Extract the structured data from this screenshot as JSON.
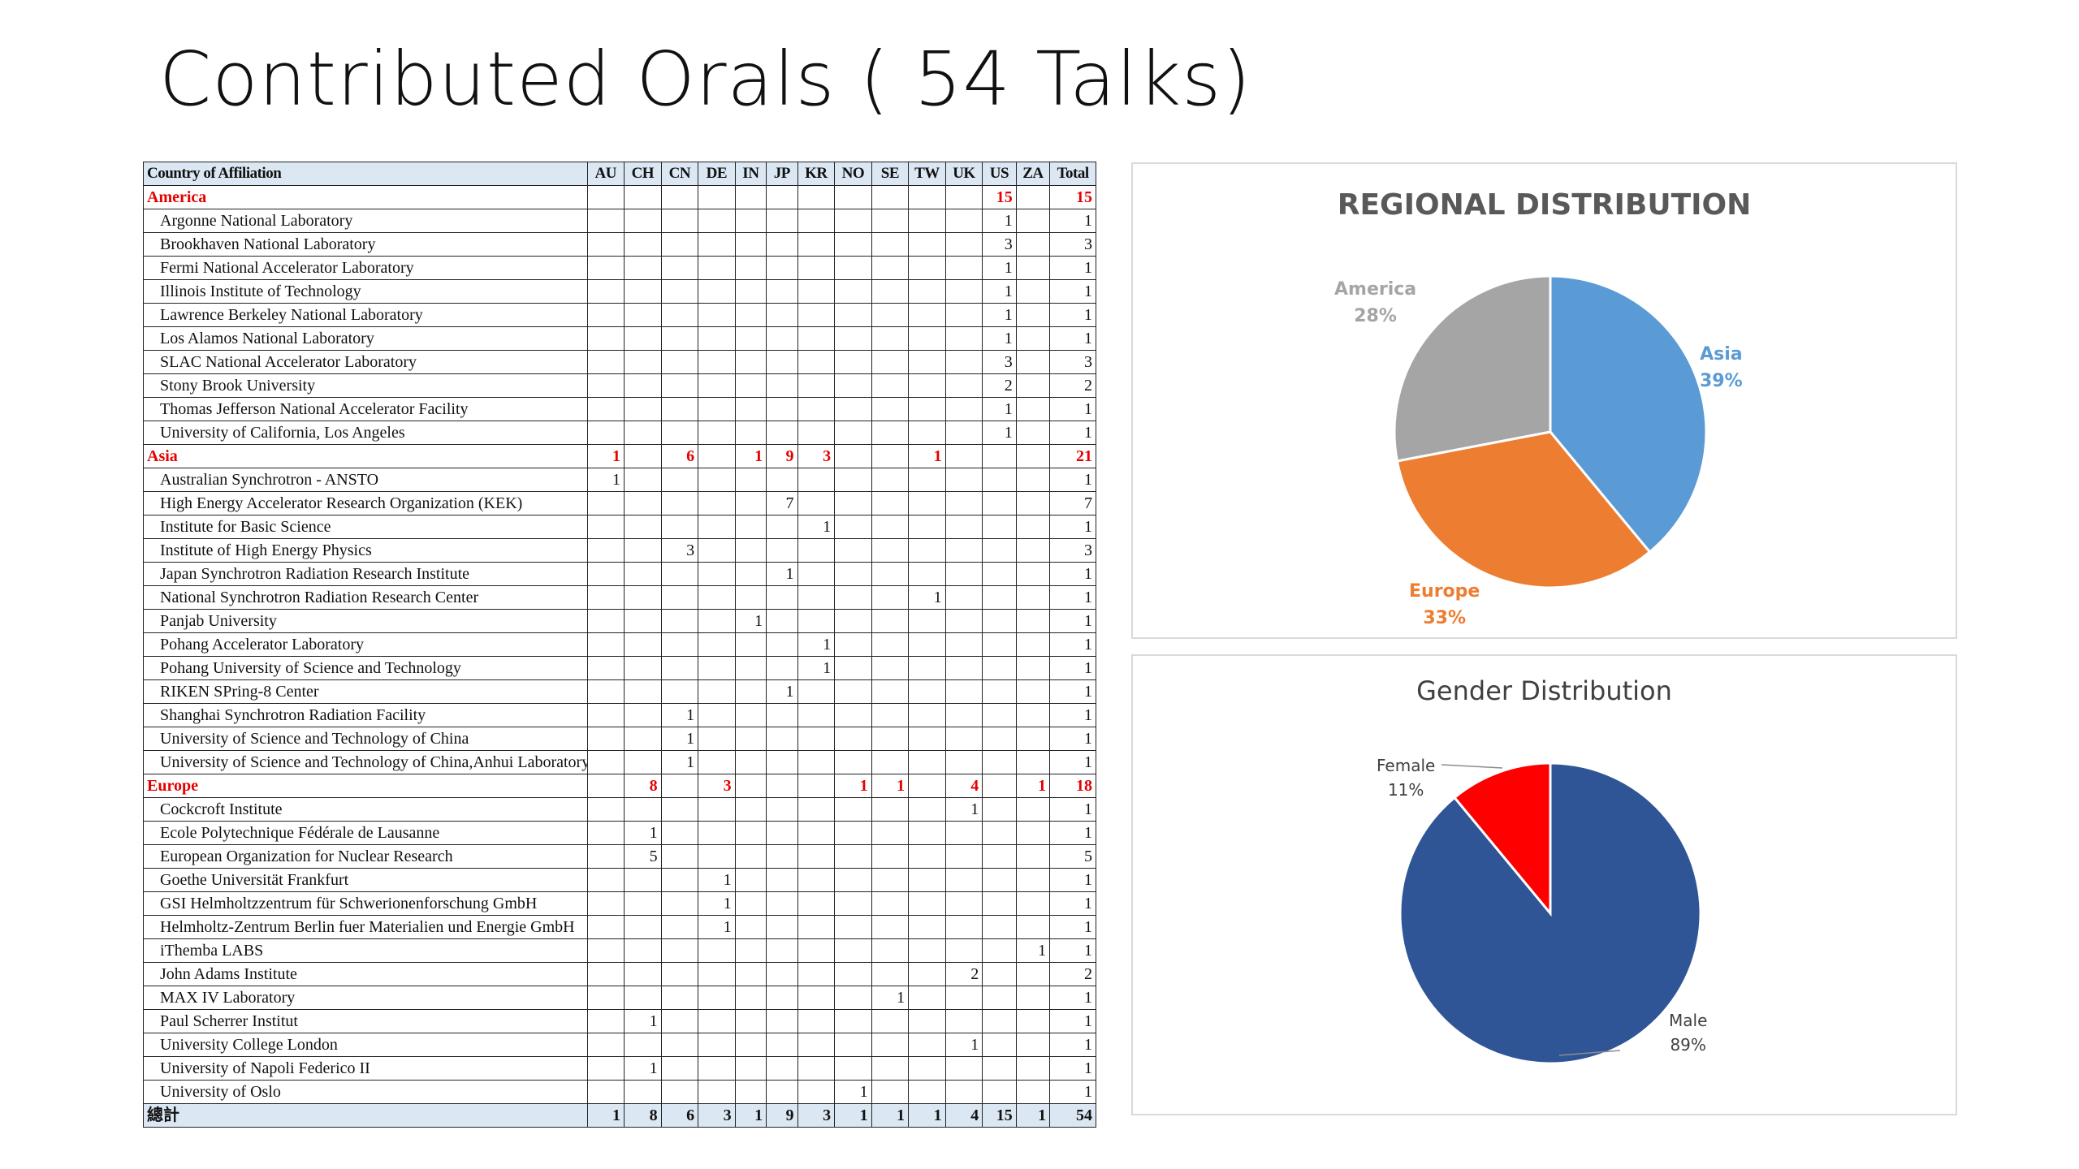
{
  "slide": {
    "title": "Contributed Orals ( 54 Talks)"
  },
  "table": {
    "header": [
      "Country of Affiliation",
      "AU",
      "CH",
      "CN",
      "DE",
      "IN",
      "JP",
      "KR",
      "NO",
      "SE",
      "TW",
      "UK",
      "US",
      "ZA",
      "Total"
    ],
    "rows": [
      {
        "kind": "region",
        "cells": [
          "America",
          "",
          "",
          "",
          "",
          "",
          "",
          "",
          "",
          "",
          "",
          "",
          "15",
          "",
          "15"
        ]
      },
      {
        "kind": "inst",
        "cells": [
          "Argonne National Laboratory",
          "",
          "",
          "",
          "",
          "",
          "",
          "",
          "",
          "",
          "",
          "",
          "1",
          "",
          "1"
        ]
      },
      {
        "kind": "inst",
        "cells": [
          "Brookhaven National Laboratory",
          "",
          "",
          "",
          "",
          "",
          "",
          "",
          "",
          "",
          "",
          "",
          "3",
          "",
          "3"
        ]
      },
      {
        "kind": "inst",
        "cells": [
          "Fermi National Accelerator Laboratory",
          "",
          "",
          "",
          "",
          "",
          "",
          "",
          "",
          "",
          "",
          "",
          "1",
          "",
          "1"
        ]
      },
      {
        "kind": "inst",
        "cells": [
          "Illinois Institute of Technology",
          "",
          "",
          "",
          "",
          "",
          "",
          "",
          "",
          "",
          "",
          "",
          "1",
          "",
          "1"
        ]
      },
      {
        "kind": "inst",
        "cells": [
          "Lawrence Berkeley National Laboratory",
          "",
          "",
          "",
          "",
          "",
          "",
          "",
          "",
          "",
          "",
          "",
          "1",
          "",
          "1"
        ]
      },
      {
        "kind": "inst",
        "cells": [
          "Los Alamos National Laboratory",
          "",
          "",
          "",
          "",
          "",
          "",
          "",
          "",
          "",
          "",
          "",
          "1",
          "",
          "1"
        ]
      },
      {
        "kind": "inst",
        "cells": [
          "SLAC National Accelerator Laboratory",
          "",
          "",
          "",
          "",
          "",
          "",
          "",
          "",
          "",
          "",
          "",
          "3",
          "",
          "3"
        ]
      },
      {
        "kind": "inst",
        "cells": [
          "Stony Brook University",
          "",
          "",
          "",
          "",
          "",
          "",
          "",
          "",
          "",
          "",
          "",
          "2",
          "",
          "2"
        ]
      },
      {
        "kind": "inst",
        "cells": [
          "Thomas Jefferson National Accelerator Facility",
          "",
          "",
          "",
          "",
          "",
          "",
          "",
          "",
          "",
          "",
          "",
          "1",
          "",
          "1"
        ]
      },
      {
        "kind": "inst",
        "cells": [
          "University of California, Los Angeles",
          "",
          "",
          "",
          "",
          "",
          "",
          "",
          "",
          "",
          "",
          "",
          "1",
          "",
          "1"
        ]
      },
      {
        "kind": "region",
        "cells": [
          "Asia",
          "1",
          "",
          "6",
          "",
          "1",
          "9",
          "3",
          "",
          "",
          "1",
          "",
          "",
          "",
          "21"
        ]
      },
      {
        "kind": "inst",
        "cells": [
          "Australian Synchrotron - ANSTO",
          "1",
          "",
          "",
          "",
          "",
          "",
          "",
          "",
          "",
          "",
          "",
          "",
          "",
          "1"
        ]
      },
      {
        "kind": "inst",
        "cells": [
          "High Energy Accelerator Research Organization (KEK)",
          "",
          "",
          "",
          "",
          "",
          "7",
          "",
          "",
          "",
          "",
          "",
          "",
          "",
          "7"
        ]
      },
      {
        "kind": "inst",
        "cells": [
          "Institute for Basic Science",
          "",
          "",
          "",
          "",
          "",
          "",
          "1",
          "",
          "",
          "",
          "",
          "",
          "",
          "1"
        ]
      },
      {
        "kind": "inst",
        "cells": [
          "Institute of High Energy Physics",
          "",
          "",
          "3",
          "",
          "",
          "",
          "",
          "",
          "",
          "",
          "",
          "",
          "",
          "3"
        ]
      },
      {
        "kind": "inst",
        "cells": [
          "Japan Synchrotron Radiation Research Institute",
          "",
          "",
          "",
          "",
          "",
          "1",
          "",
          "",
          "",
          "",
          "",
          "",
          "",
          "1"
        ]
      },
      {
        "kind": "inst",
        "cells": [
          "National Synchrotron Radiation Research Center",
          "",
          "",
          "",
          "",
          "",
          "",
          "",
          "",
          "",
          "1",
          "",
          "",
          "",
          "1"
        ]
      },
      {
        "kind": "inst",
        "cells": [
          "Panjab University",
          "",
          "",
          "",
          "",
          "1",
          "",
          "",
          "",
          "",
          "",
          "",
          "",
          "",
          "1"
        ]
      },
      {
        "kind": "inst",
        "cells": [
          "Pohang Accelerator Laboratory",
          "",
          "",
          "",
          "",
          "",
          "",
          "1",
          "",
          "",
          "",
          "",
          "",
          "",
          "1"
        ]
      },
      {
        "kind": "inst",
        "cells": [
          "Pohang University of Science and Technology",
          "",
          "",
          "",
          "",
          "",
          "",
          "1",
          "",
          "",
          "",
          "",
          "",
          "",
          "1"
        ]
      },
      {
        "kind": "inst",
        "cells": [
          "RIKEN SPring-8 Center",
          "",
          "",
          "",
          "",
          "",
          "1",
          "",
          "",
          "",
          "",
          "",
          "",
          "",
          "1"
        ]
      },
      {
        "kind": "inst",
        "cells": [
          "Shanghai Synchrotron Radiation Facility",
          "",
          "",
          "1",
          "",
          "",
          "",
          "",
          "",
          "",
          "",
          "",
          "",
          "",
          "1"
        ]
      },
      {
        "kind": "inst",
        "cells": [
          "University of Science and Technology of China",
          "",
          "",
          "1",
          "",
          "",
          "",
          "",
          "",
          "",
          "",
          "",
          "",
          "",
          "1"
        ]
      },
      {
        "kind": "inst",
        "cells": [
          "University of Science and Technology of China,Anhui Laboratory of A",
          "",
          "",
          "1",
          "",
          "",
          "",
          "",
          "",
          "",
          "",
          "",
          "",
          "",
          "1"
        ]
      },
      {
        "kind": "region",
        "cells": [
          "Europe",
          "",
          "8",
          "",
          "3",
          "",
          "",
          "",
          "1",
          "1",
          "",
          "4",
          "",
          "1",
          "18"
        ]
      },
      {
        "kind": "inst",
        "cells": [
          "Cockcroft Institute",
          "",
          "",
          "",
          "",
          "",
          "",
          "",
          "",
          "",
          "",
          "1",
          "",
          "",
          "1"
        ]
      },
      {
        "kind": "inst",
        "cells": [
          "Ecole Polytechnique Fédérale de Lausanne",
          "",
          "1",
          "",
          "",
          "",
          "",
          "",
          "",
          "",
          "",
          "",
          "",
          "",
          "1"
        ]
      },
      {
        "kind": "inst",
        "cells": [
          "European Organization for Nuclear Research",
          "",
          "5",
          "",
          "",
          "",
          "",
          "",
          "",
          "",
          "",
          "",
          "",
          "",
          "5"
        ]
      },
      {
        "kind": "inst",
        "cells": [
          "Goethe Universität Frankfurt",
          "",
          "",
          "",
          "1",
          "",
          "",
          "",
          "",
          "",
          "",
          "",
          "",
          "",
          "1"
        ]
      },
      {
        "kind": "inst",
        "cells": [
          "GSI Helmholtzzentrum für Schwerionenforschung GmbH",
          "",
          "",
          "",
          "1",
          "",
          "",
          "",
          "",
          "",
          "",
          "",
          "",
          "",
          "1"
        ]
      },
      {
        "kind": "inst",
        "cells": [
          "Helmholtz-Zentrum Berlin fuer Materialien und Energie GmbH",
          "",
          "",
          "",
          "1",
          "",
          "",
          "",
          "",
          "",
          "",
          "",
          "",
          "",
          "1"
        ]
      },
      {
        "kind": "inst",
        "cells": [
          "iThemba LABS",
          "",
          "",
          "",
          "",
          "",
          "",
          "",
          "",
          "",
          "",
          "",
          "",
          "1",
          "1"
        ]
      },
      {
        "kind": "inst",
        "cells": [
          "John Adams Institute",
          "",
          "",
          "",
          "",
          "",
          "",
          "",
          "",
          "",
          "",
          "2",
          "",
          "",
          "2"
        ]
      },
      {
        "kind": "inst",
        "cells": [
          "MAX IV Laboratory",
          "",
          "",
          "",
          "",
          "",
          "",
          "",
          "",
          "1",
          "",
          "",
          "",
          "",
          "1"
        ]
      },
      {
        "kind": "inst",
        "cells": [
          "Paul Scherrer Institut",
          "",
          "1",
          "",
          "",
          "",
          "",
          "",
          "",
          "",
          "",
          "",
          "",
          "",
          "1"
        ]
      },
      {
        "kind": "inst",
        "cells": [
          "University College London",
          "",
          "",
          "",
          "",
          "",
          "",
          "",
          "",
          "",
          "",
          "1",
          "",
          "",
          "1"
        ]
      },
      {
        "kind": "inst",
        "cells": [
          "University of Napoli Federico II",
          "",
          "1",
          "",
          "",
          "",
          "",
          "",
          "",
          "",
          "",
          "",
          "",
          "",
          "1"
        ]
      },
      {
        "kind": "inst",
        "cells": [
          "University of Oslo",
          "",
          "",
          "",
          "",
          "",
          "",
          "",
          "1",
          "",
          "",
          "",
          "",
          "",
          "1"
        ]
      },
      {
        "kind": "foot",
        "cells": [
          "總計",
          "1",
          "8",
          "6",
          "3",
          "1",
          "9",
          "3",
          "1",
          "1",
          "1",
          "4",
          "15",
          "1",
          "54"
        ]
      }
    ]
  },
  "chart_data": [
    {
      "type": "pie",
      "title": "REGIONAL DISTRIBUTION",
      "slices": [
        {
          "label": "Asia",
          "pct_label": "39%",
          "value": 39,
          "color": "#5b9bd5"
        },
        {
          "label": "Europe",
          "pct_label": "33%",
          "value": 33,
          "color": "#ed7d31"
        },
        {
          "label": "America",
          "pct_label": "28%",
          "value": 28,
          "color": "#a5a5a5"
        }
      ],
      "legend": "none"
    },
    {
      "type": "pie",
      "title": "Gender Distribution",
      "slices": [
        {
          "label": "Male",
          "pct_label": "89%",
          "value": 89,
          "color": "#2f5597"
        },
        {
          "label": "Female",
          "pct_label": "11%",
          "value": 11,
          "color": "#ff0000"
        }
      ],
      "legend": "none"
    }
  ]
}
